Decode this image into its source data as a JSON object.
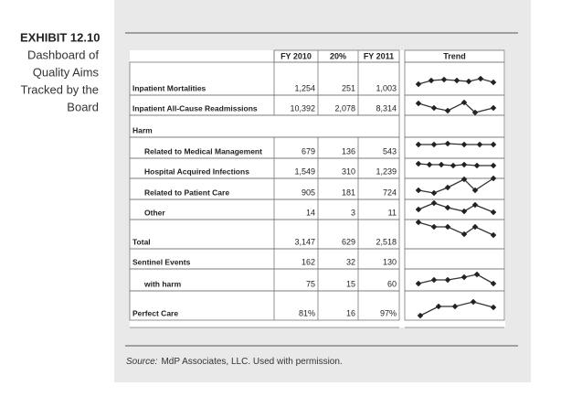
{
  "header": {
    "exhibit": "EXHIBIT 12.10",
    "caption": [
      "Dashboard of",
      "Quality Aims",
      "Tracked by the",
      "Board"
    ]
  },
  "table": {
    "columns": [
      "FY 2010",
      "20%",
      "FY 2011",
      "Trend"
    ],
    "rows": [
      {
        "label": "Inpatient Mortalities",
        "cells": [
          "1,254",
          "251",
          "1,003"
        ]
      },
      {
        "label": "Inpatient All-Cause Readmissions",
        "cells": [
          "10,392",
          "2,078",
          "8,314"
        ]
      },
      {
        "label": "Harm",
        "cells": []
      },
      {
        "label": "Related to Medical Management",
        "cells": [
          "679",
          "136",
          "543"
        ]
      },
      {
        "label": "Hospital Acquired Infections",
        "cells": [
          "1,549",
          "310",
          "1,239"
        ]
      },
      {
        "label": "Related to Patient Care",
        "cells": [
          "905",
          "181",
          "724"
        ]
      },
      {
        "label": "Other",
        "cells": [
          "14",
          "3",
          "11"
        ]
      },
      {
        "label": "Total",
        "cells": [
          "3,147",
          "629",
          "2,518"
        ]
      },
      {
        "label": "Sentinel Events",
        "cells": [
          "162",
          "32",
          "130"
        ]
      },
      {
        "label": "with harm",
        "cells": [
          "75",
          "15",
          "60"
        ]
      },
      {
        "label": "Perfect Care",
        "cells": [
          "81%",
          "16",
          "97%"
        ]
      }
    ]
  },
  "source": {
    "label": "Source:",
    "text": "MdP Associates, LLC. Used with permission."
  }
}
